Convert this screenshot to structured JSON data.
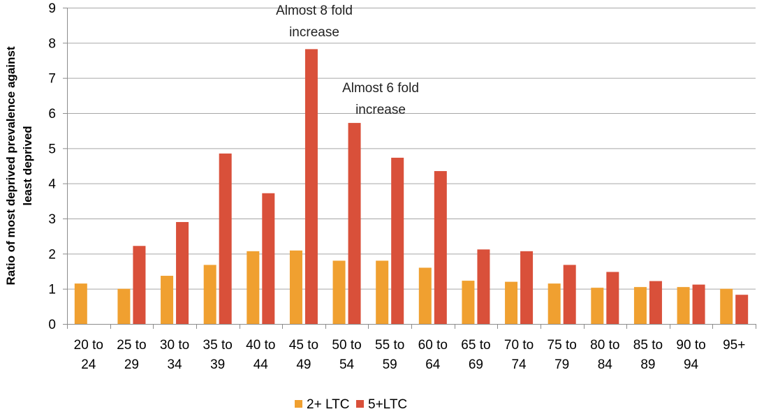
{
  "chart_data": {
    "type": "bar",
    "ylabel_lines": [
      "Ratio of most deprived prevalence against",
      "least deprived"
    ],
    "ylim": [
      0,
      9
    ],
    "yticks": [
      0,
      1,
      2,
      3,
      4,
      5,
      6,
      7,
      8,
      9
    ],
    "categories": [
      [
        "20 to",
        "24"
      ],
      [
        "25 to",
        "29"
      ],
      [
        "30 to",
        "34"
      ],
      [
        "35 to",
        "39"
      ],
      [
        "40 to",
        "44"
      ],
      [
        "45 to",
        "49"
      ],
      [
        "50 to",
        "54"
      ],
      [
        "55 to",
        "59"
      ],
      [
        "60 to",
        "64"
      ],
      [
        "65 to",
        "69"
      ],
      [
        "70 to",
        "74"
      ],
      [
        "75 to",
        "79"
      ],
      [
        "80 to",
        "84"
      ],
      [
        "85 to",
        "89"
      ],
      [
        "90 to",
        "94"
      ],
      [
        "95+",
        ""
      ]
    ],
    "series": [
      {
        "name": "2+ LTC",
        "color": "#F0A030",
        "values": [
          1.15,
          1.0,
          1.37,
          1.68,
          2.07,
          2.09,
          1.8,
          1.8,
          1.6,
          1.23,
          1.2,
          1.15,
          1.03,
          1.05,
          1.05,
          1.0
        ]
      },
      {
        "name": "5+LTC",
        "color": "#D9503A",
        "values": [
          null,
          2.22,
          2.9,
          4.85,
          3.72,
          7.82,
          5.72,
          4.73,
          4.35,
          2.12,
          2.07,
          1.68,
          1.48,
          1.22,
          1.12,
          0.83
        ]
      }
    ],
    "annotations": [
      {
        "lines": [
          "Almost 8 fold",
          "increase"
        ],
        "category_index": 5
      },
      {
        "lines": [
          "Almost 6 fold",
          "increase"
        ],
        "category_index": 6
      }
    ],
    "legend": "bottom",
    "grid": true
  }
}
